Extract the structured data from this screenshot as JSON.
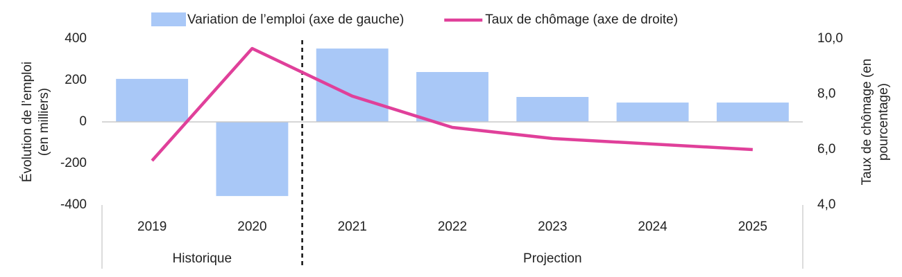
{
  "chart_data": {
    "type": "combo",
    "categories": [
      "2019",
      "2020",
      "2021",
      "2022",
      "2023",
      "2024",
      "2025"
    ],
    "series": [
      {
        "name": "Variation de l’emploi (axe de gauche)",
        "type": "bar",
        "color": "#a9c8f7",
        "axis": "y",
        "values": [
          207,
          -357,
          353,
          240,
          120,
          93,
          93
        ]
      },
      {
        "name": "Taux de chômage (axe de droite)",
        "type": "line",
        "color": "#e0409a",
        "axis": "y2",
        "values": [
          5.6,
          9.65,
          7.93,
          6.8,
          6.4,
          6.2,
          6.0
        ]
      }
    ],
    "ylabel": [
      "Évolution de l’emploi",
      "(en milliers)"
    ],
    "y2label": [
      "Taux de chômage (en",
      "pourcentage)"
    ],
    "ylim": [
      -400,
      400
    ],
    "yticks": [
      400,
      200,
      0,
      -200,
      -400
    ],
    "y2lim": [
      4,
      10
    ],
    "y2ticks": [
      {
        "value": 10,
        "label": "10,0"
      },
      {
        "value": 8,
        "label": "8,0"
      },
      {
        "value": 6,
        "label": "6,0"
      },
      {
        "value": 4,
        "label": "4,0"
      }
    ],
    "groups": [
      {
        "label": "Historique",
        "count": 2
      },
      {
        "label": "Projection",
        "count": 5
      }
    ]
  }
}
